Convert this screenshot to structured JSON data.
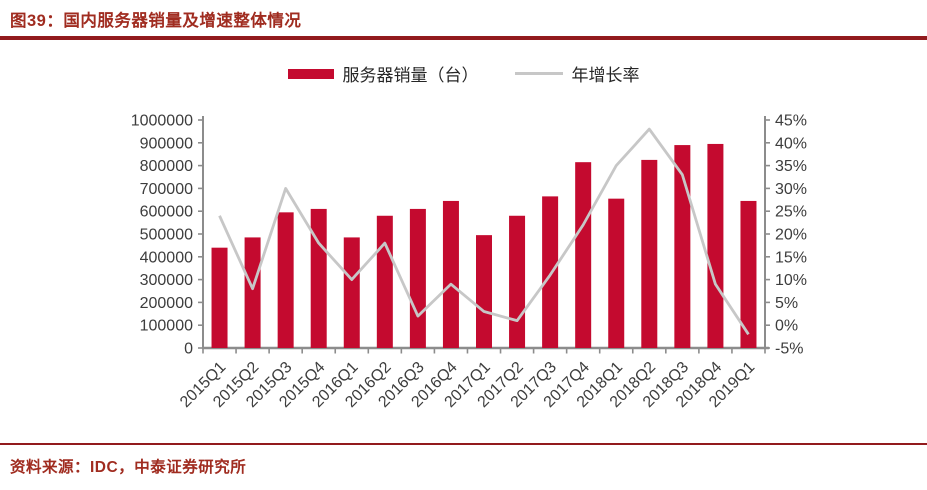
{
  "header": {
    "title": "图39：国内服务器销量及增速整体情况"
  },
  "footer": {
    "source": "资料来源：IDC，中泰证券研究所"
  },
  "colors": {
    "bar": "#C40A2F",
    "line": "#C7C7C7",
    "axis": "#8C8C8C",
    "tick_label": "#3D3D3D",
    "title_text": "#A02C20",
    "rule": "#921A1D"
  },
  "chart_data": {
    "type": "bar",
    "title": "图39：国内服务器销量及增速整体情况",
    "categories": [
      "2015Q1",
      "2015Q2",
      "2015Q3",
      "2015Q4",
      "2016Q1",
      "2016Q2",
      "2016Q3",
      "2016Q4",
      "2017Q1",
      "2017Q2",
      "2017Q3",
      "2017Q4",
      "2018Q1",
      "2018Q2",
      "2018Q3",
      "2018Q4",
      "2019Q1"
    ],
    "series": [
      {
        "name": "服务器销量（台）",
        "type": "bar",
        "axis": "left",
        "values": [
          440000,
          485000,
          595000,
          610000,
          485000,
          580000,
          610000,
          645000,
          495000,
          580000,
          665000,
          815000,
          655000,
          825000,
          890000,
          895000,
          645000
        ]
      },
      {
        "name": "年增长率",
        "type": "line",
        "axis": "right",
        "values": [
          24,
          8,
          30,
          18,
          10,
          18,
          2,
          9,
          3,
          1,
          11,
          22,
          35,
          43,
          33,
          9,
          -2
        ]
      }
    ],
    "left_axis": {
      "min": 0,
      "max": 1000000,
      "step": 100000,
      "tick_labels": [
        "0",
        "100000",
        "200000",
        "300000",
        "400000",
        "500000",
        "600000",
        "700000",
        "800000",
        "900000",
        "1000000"
      ]
    },
    "right_axis": {
      "min": -5,
      "max": 45,
      "step": 5,
      "tick_labels": [
        "-5%",
        "0%",
        "5%",
        "10%",
        "15%",
        "20%",
        "25%",
        "30%",
        "35%",
        "40%",
        "45%"
      ]
    },
    "legend_position": "top-center",
    "grid": false
  }
}
